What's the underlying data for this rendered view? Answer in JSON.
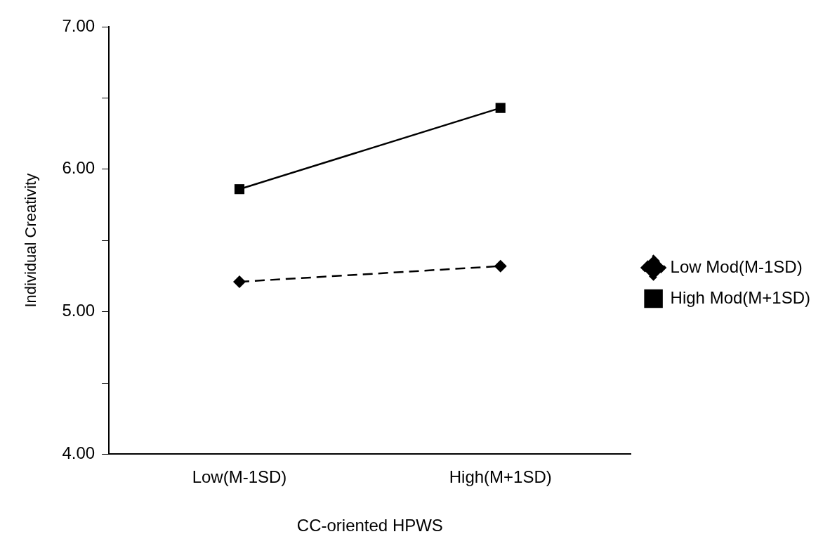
{
  "chart_data": {
    "type": "line",
    "xlabel": "CC-oriented HPWS",
    "ylabel": "Individual Creativity",
    "categories": [
      "Low(M-1SD)",
      "High(M+1SD)"
    ],
    "series": [
      {
        "name": "Low Mod(M-1SD)",
        "color": "#000000",
        "values": [
          5.21,
          5.32
        ],
        "marker": "diamond",
        "line_style": "dashed"
      },
      {
        "name": "High Mod(M+1SD)",
        "color": "#000000",
        "values": [
          5.86,
          6.43
        ],
        "marker": "square",
        "line_style": "solid"
      }
    ],
    "ylim": [
      4,
      7
    ],
    "yticks": [
      {
        "value": 4,
        "label": "4.00"
      },
      {
        "value": 4.5,
        "label": null
      },
      {
        "value": 5,
        "label": "5.00"
      },
      {
        "value": 5.5,
        "label": null
      },
      {
        "value": 6,
        "label": "6.00"
      },
      {
        "value": 6.5,
        "label": null
      },
      {
        "value": 7,
        "label": "7.00"
      }
    ],
    "grid": false,
    "legend": "right"
  }
}
